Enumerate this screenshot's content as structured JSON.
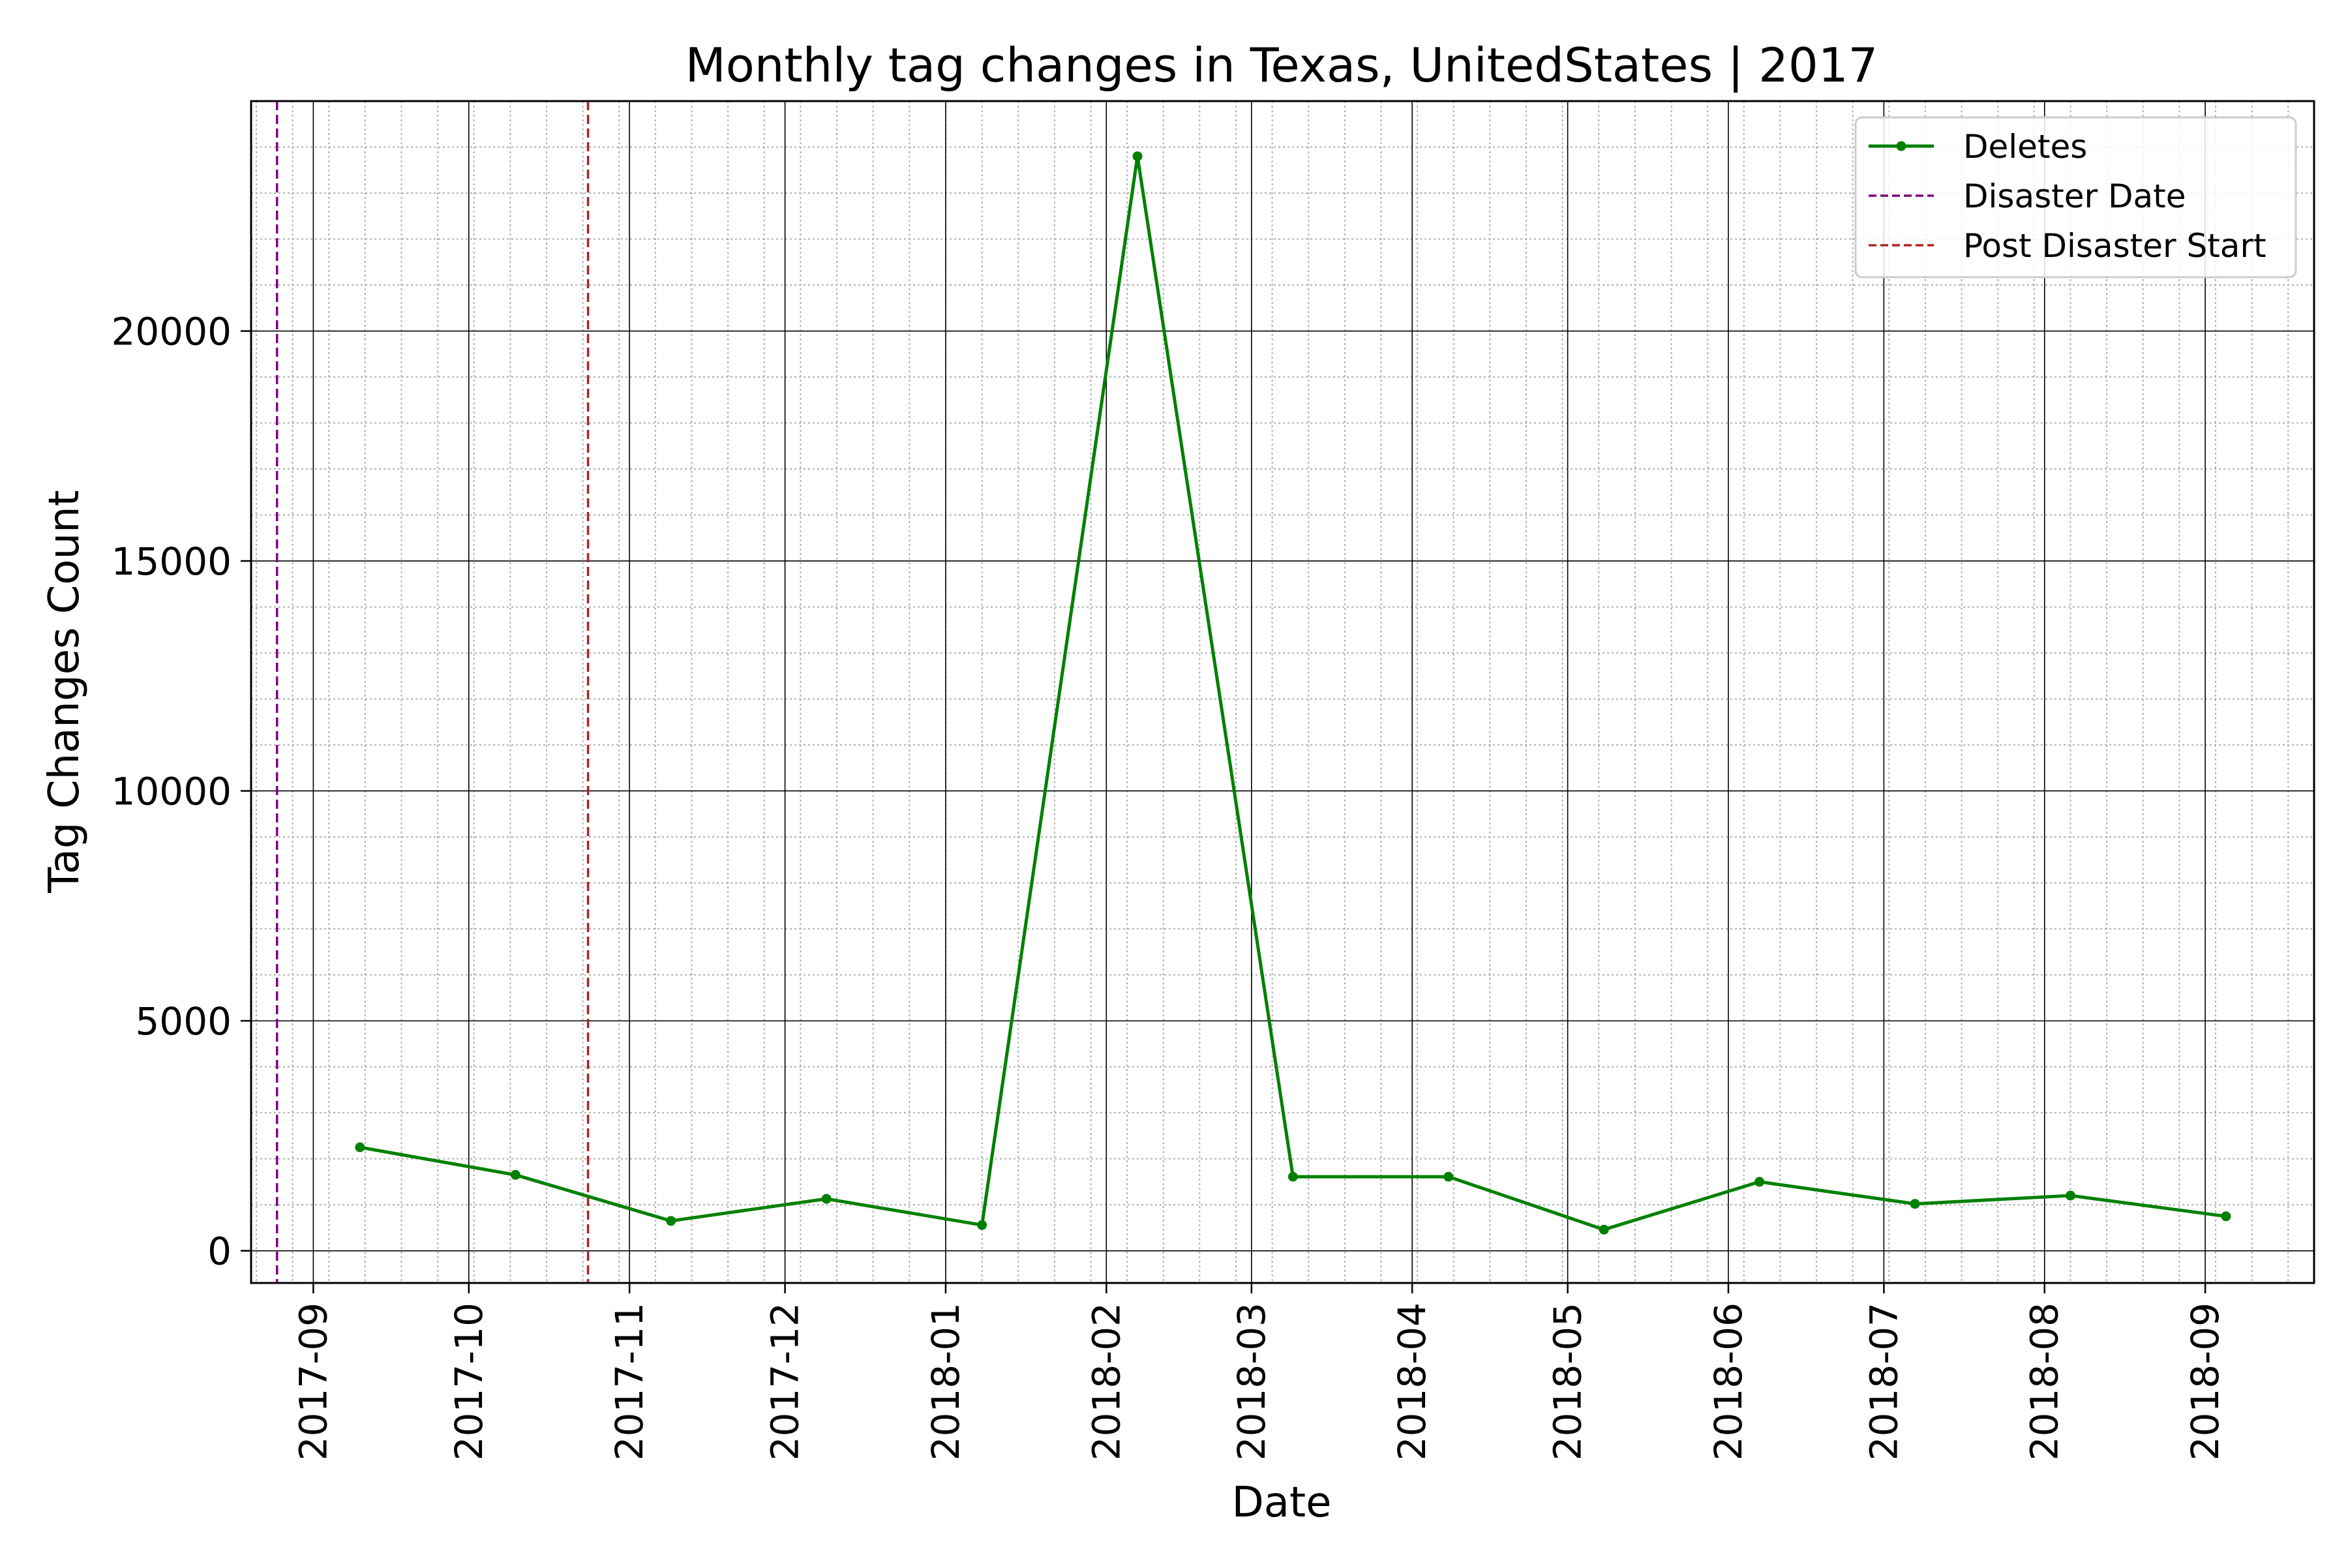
{
  "chart_data": {
    "type": "line",
    "title": "Monthly tag changes in Texas, UnitedStates | 2017",
    "xlabel": "Date",
    "ylabel": "Tag Changes Count",
    "x_ticks": [
      "2017-09",
      "2017-10",
      "2017-11",
      "2017-12",
      "2018-01",
      "2018-02",
      "2018-03",
      "2018-04",
      "2018-05",
      "2018-06",
      "2018-07",
      "2018-08",
      "2018-09"
    ],
    "y_ticks": [
      "0",
      "5000",
      "10000",
      "15000",
      "20000"
    ],
    "xlim": [
      "2017-08-20",
      "2018-09-22"
    ],
    "ylim": [
      -700,
      25000
    ],
    "grid": true,
    "legend_position": "top-right",
    "series": [
      {
        "name": "Deletes",
        "color": "#008000",
        "x": [
          "2017-09-10",
          "2017-10-10",
          "2017-11-09",
          "2017-12-09",
          "2018-01-08",
          "2018-02-07",
          "2018-03-09",
          "2018-04-08",
          "2018-05-08",
          "2018-06-07",
          "2018-07-07",
          "2018-08-06",
          "2018-09-05"
        ],
        "y": [
          2250,
          1650,
          650,
          1130,
          560,
          23800,
          1610,
          1610,
          460,
          1500,
          1020,
          1200,
          750
        ]
      }
    ],
    "vlines": [
      {
        "name": "Disaster Date",
        "x": "2017-08-25",
        "color": "#800080",
        "style": "dashed"
      },
      {
        "name": "Post Disaster Start",
        "x": "2017-10-24",
        "color": "#b22222",
        "style": "dashed"
      }
    ]
  }
}
